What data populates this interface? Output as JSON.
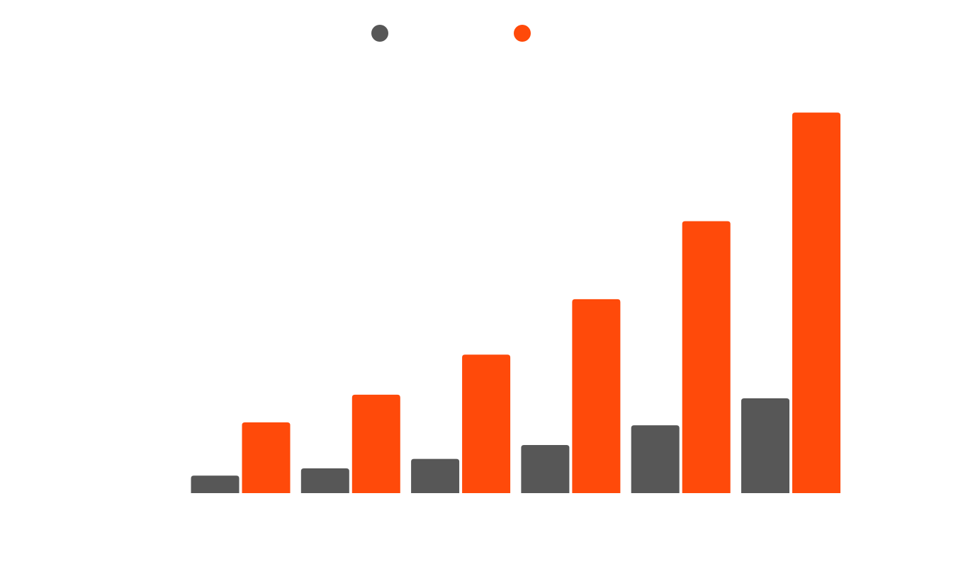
{
  "chart_data": {
    "type": "bar",
    "categories": [
      "",
      "",
      "",
      "",
      "",
      ""
    ],
    "series": [
      {
        "color": "#575757",
        "values": [
          24,
          34,
          47,
          66,
          93,
          130
        ]
      },
      {
        "color": "#ff4a0a",
        "values": [
          97,
          135,
          190,
          266,
          373,
          522
        ]
      }
    ],
    "ylim": [
      0,
      560
    ],
    "grid": false,
    "legend": "top-center"
  }
}
